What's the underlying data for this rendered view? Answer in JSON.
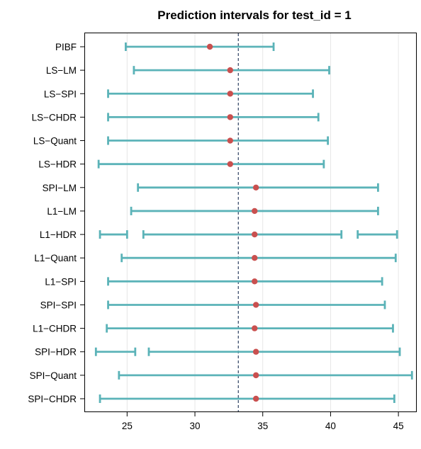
{
  "chart_data": {
    "type": "interval",
    "title": "Prediction intervals for test_id = 1",
    "xlabel": "",
    "ylabel": "",
    "xlim": [
      21.9,
      46.3
    ],
    "xticks": [
      25,
      30,
      35,
      40,
      45
    ],
    "grid": true,
    "reference_line": 33.2,
    "colors": {
      "interval": "#5bb3b8",
      "point": "#c9504f",
      "reference": "#3d4f6e",
      "grid": "#e6e6e6"
    },
    "methods": [
      {
        "label": "PIBF",
        "point": 31.1,
        "intervals": [
          [
            24.9,
            35.8
          ]
        ]
      },
      {
        "label": "LS−LM",
        "point": 32.6,
        "intervals": [
          [
            25.5,
            39.9
          ]
        ]
      },
      {
        "label": "LS−SPI",
        "point": 32.6,
        "intervals": [
          [
            23.6,
            38.7
          ]
        ]
      },
      {
        "label": "LS−CHDR",
        "point": 32.6,
        "intervals": [
          [
            23.6,
            39.1
          ]
        ]
      },
      {
        "label": "LS−Quant",
        "point": 32.6,
        "intervals": [
          [
            23.6,
            39.8
          ]
        ]
      },
      {
        "label": "LS−HDR",
        "point": 32.6,
        "intervals": [
          [
            22.9,
            39.5
          ]
        ]
      },
      {
        "label": "SPI−LM",
        "point": 34.5,
        "intervals": [
          [
            25.8,
            43.5
          ]
        ]
      },
      {
        "label": "L1−LM",
        "point": 34.4,
        "intervals": [
          [
            25.3,
            43.5
          ]
        ]
      },
      {
        "label": "L1−HDR",
        "point": 34.4,
        "intervals": [
          [
            23.0,
            25.0
          ],
          [
            26.2,
            40.8
          ],
          [
            42.0,
            44.9
          ]
        ]
      },
      {
        "label": "L1−Quant",
        "point": 34.4,
        "intervals": [
          [
            24.6,
            44.8
          ]
        ]
      },
      {
        "label": "L1−SPI",
        "point": 34.4,
        "intervals": [
          [
            23.6,
            43.8
          ]
        ]
      },
      {
        "label": "SPI−SPI",
        "point": 34.5,
        "intervals": [
          [
            23.6,
            44.0
          ]
        ]
      },
      {
        "label": "L1−CHDR",
        "point": 34.4,
        "intervals": [
          [
            23.5,
            44.6
          ]
        ]
      },
      {
        "label": "SPI−HDR",
        "point": 34.5,
        "intervals": [
          [
            22.7,
            25.6
          ],
          [
            26.6,
            45.1
          ]
        ]
      },
      {
        "label": "SPI−Quant",
        "point": 34.5,
        "intervals": [
          [
            24.4,
            46.0
          ]
        ]
      },
      {
        "label": "SPI−CHDR",
        "point": 34.5,
        "intervals": [
          [
            23.0,
            44.7
          ]
        ]
      }
    ]
  }
}
